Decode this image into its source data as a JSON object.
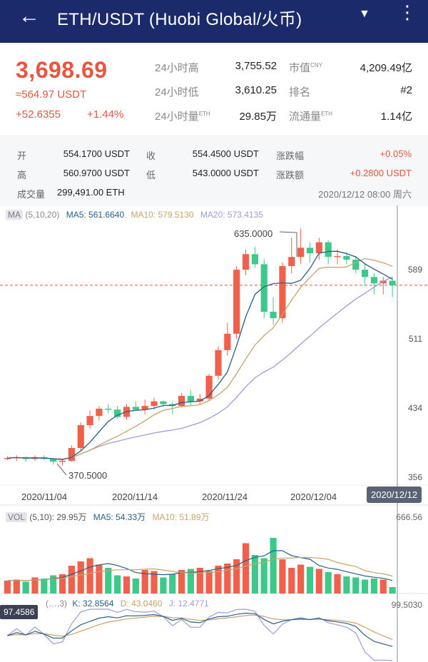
{
  "header": {
    "title": "ETH/USDT (Huobi Global/火币)",
    "back_icon": "←",
    "dropdown_icon": "▼",
    "more_icon": "⋮"
  },
  "summary": {
    "price": "3,698.69",
    "usdt_value": "≈564.97 USDT",
    "change": "+52.6355",
    "change_pct": "+1.44%",
    "stats": [
      {
        "label": "24小时高",
        "sup": "",
        "value": "3,755.52"
      },
      {
        "label": "24小时低",
        "sup": "",
        "value": "3,610.25"
      },
      {
        "label": "24小时量",
        "sup": "ETH",
        "value": "29.85万"
      },
      {
        "label": "市值",
        "sup": "CNY",
        "value": "4,209.49亿"
      },
      {
        "label": "排名",
        "sup": "",
        "value": "#2"
      },
      {
        "label": "流通量",
        "sup": "ETH",
        "value": "1.14亿"
      }
    ]
  },
  "ohlc": {
    "open_label": "开",
    "open": "554.1700 USDT",
    "close_label": "收",
    "close": "554.4500 USDT",
    "rise_pct_label": "涨跌幅",
    "rise_pct": "+0.05%",
    "high_label": "高",
    "high": "560.9700 USDT",
    "low_label": "低",
    "low": "543.0000 USDT",
    "rise_amt_label": "涨跌额",
    "rise_amt": "+0.2800 USDT",
    "volume_label": "成交量",
    "volume": "299,491.00 ETH",
    "datetime": "2020/12/12 08:00 周六"
  },
  "ma_legend": {
    "tag": "MA",
    "params": "(5,10,20)",
    "ma5": "MA5: 561.6640",
    "ma10": "MA10: 579.5130",
    "ma20": "MA20: 573.4135"
  },
  "vol_legend": {
    "tag": "VOL",
    "params": "(5,10): 29.95万",
    "ma5": "MA5: 54.33万",
    "ma10": "MA10: 51.89万"
  },
  "kdj_legend": {
    "params": "(…,3)",
    "k": "K: 32.8564",
    "d": "D: 43.0460",
    "j": "J: 12.4771"
  },
  "price_axis": [
    "589",
    "511",
    "434",
    "356"
  ],
  "vol_axis_max": "666.56",
  "kdj_axis_max": "99.5030",
  "kdj_cursor_value": "97.4586",
  "date_labels": [
    "2020/11/04",
    "2020/11/14",
    "2020/11/24",
    "2020/12/04"
  ],
  "cursor_date": "2020/12/12",
  "high_marker": "635.0000",
  "low_marker": "370.5000",
  "colors": {
    "up": "#f0604a",
    "down": "#3ec88a",
    "ma5": "#2a5f8a",
    "ma10": "#c9a36a",
    "ma20": "#9c9ce0",
    "header": "#1b2a6b"
  },
  "chart_data": {
    "type": "candlestick",
    "ylim": [
      356,
      640
    ],
    "candles": [
      [
        384,
        386,
        382,
        384
      ],
      [
        384,
        387,
        381,
        385
      ],
      [
        385,
        386,
        380,
        383
      ],
      [
        383,
        387,
        381,
        385
      ],
      [
        385,
        387,
        382,
        383
      ],
      [
        383,
        384,
        377,
        380
      ],
      [
        380,
        383,
        376,
        381
      ],
      [
        381,
        398,
        380,
        395
      ],
      [
        395,
        423,
        392,
        420
      ],
      [
        420,
        436,
        416,
        430
      ],
      [
        430,
        441,
        425,
        438
      ],
      [
        438,
        443,
        433,
        437
      ],
      [
        437,
        441,
        427,
        429
      ],
      [
        429,
        443,
        426,
        440
      ],
      [
        440,
        446,
        436,
        437
      ],
      [
        437,
        448,
        432,
        441
      ],
      [
        441,
        450,
        437,
        446
      ],
      [
        446,
        447,
        440,
        443
      ],
      [
        443,
        445,
        432,
        441
      ],
      [
        441,
        455,
        439,
        452
      ],
      [
        452,
        458,
        441,
        446
      ],
      [
        446,
        454,
        442,
        449
      ],
      [
        449,
        476,
        447,
        474
      ],
      [
        474,
        506,
        470,
        502
      ],
      [
        502,
        532,
        496,
        520
      ],
      [
        520,
        594,
        514,
        590
      ],
      [
        590,
        612,
        584,
        607
      ],
      [
        607,
        615,
        592,
        596
      ],
      [
        596,
        602,
        537,
        544
      ],
      [
        544,
        560,
        530,
        537
      ],
      [
        537,
        598,
        532,
        594
      ],
      [
        594,
        625,
        586,
        604
      ],
      [
        604,
        635,
        596,
        614
      ],
      [
        614,
        620,
        598,
        608
      ],
      [
        608,
        625,
        601,
        620
      ],
      [
        620,
        622,
        596,
        604
      ],
      [
        604,
        612,
        596,
        605
      ],
      [
        605,
        609,
        596,
        601
      ],
      [
        601,
        605,
        586,
        590
      ],
      [
        590,
        597,
        572,
        582
      ],
      [
        582,
        586,
        563,
        575
      ],
      [
        575,
        582,
        563,
        578
      ],
      [
        578,
        582,
        560,
        573
      ]
    ],
    "volume_ylim": [
      0,
      666.56
    ],
    "volumes": [
      120,
      130,
      110,
      150,
      140,
      170,
      180,
      260,
      300,
      330,
      270,
      240,
      170,
      160,
      140,
      220,
      210,
      150,
      180,
      220,
      230,
      240,
      210,
      260,
      280,
      320,
      470,
      360,
      330,
      520,
      320,
      240,
      270,
      250,
      230,
      200,
      180,
      160,
      150,
      130,
      140,
      130,
      60
    ]
  }
}
